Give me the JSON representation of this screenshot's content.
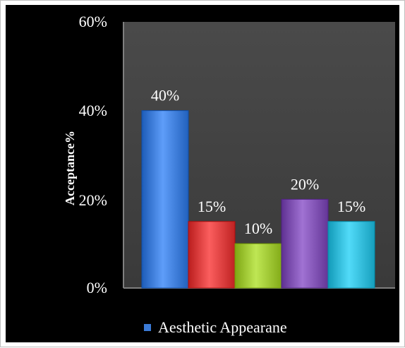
{
  "chart_data": {
    "type": "bar",
    "categories": [
      "",
      "",
      "",
      "",
      ""
    ],
    "values": [
      40,
      15,
      10,
      20,
      15
    ],
    "data_labels": [
      "40%",
      "15%",
      "10%",
      "20%",
      "15%"
    ],
    "series": [
      {
        "name": "Aesthetic Appearane",
        "values": [
          40,
          15,
          10,
          20,
          15
        ]
      }
    ],
    "title": "",
    "xlabel": "",
    "ylabel": "Acceptance%",
    "ylim": [
      0,
      60
    ],
    "yticks": [
      "0%",
      "20%",
      "40%",
      "60%"
    ],
    "grid": false,
    "legend_position": "bottom",
    "bar_colors": [
      "#3b7ad6",
      "#d83b3b",
      "#9cc431",
      "#7d4fb0",
      "#2fb8d6"
    ],
    "plot_background": "#404040",
    "chart_background": "#000000"
  }
}
